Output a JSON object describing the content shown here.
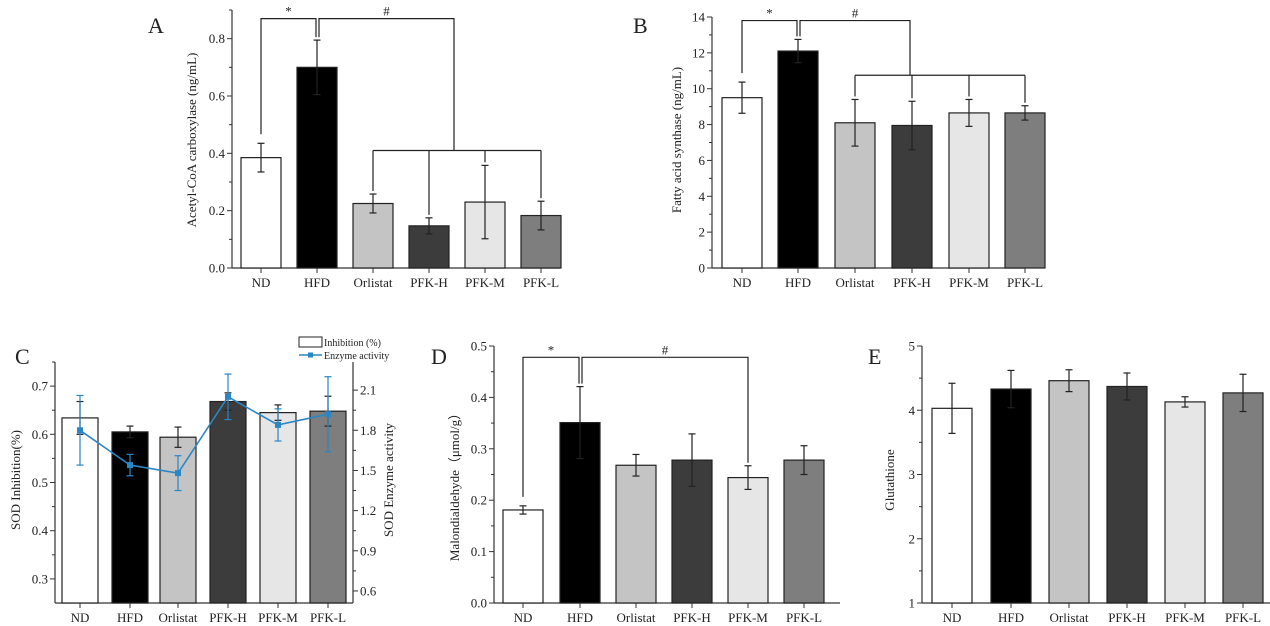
{
  "chart_data": [
    {
      "id": "A",
      "type": "bar",
      "panel_label": "A",
      "title": "",
      "xlabel": "",
      "ylabel": "Acetyl-CoA carboxylase (ng/mL)",
      "categories": [
        "ND",
        "HFD",
        "Orlistat",
        "PFK-H",
        "PFK-M",
        "PFK-L"
      ],
      "values": [
        0.385,
        0.7,
        0.225,
        0.147,
        0.23,
        0.183
      ],
      "errors": [
        0.05,
        0.095,
        0.033,
        0.028,
        0.128,
        0.05
      ],
      "ylim": [
        0,
        0.9
      ],
      "yticks": [
        0.0,
        0.2,
        0.4,
        0.6,
        0.8
      ],
      "ytick_labels": [
        "0.0",
        "0.2",
        "0.4",
        "0.6",
        "0.8"
      ],
      "bar_colors": [
        "#ffffff",
        "#000000",
        "#c4c4c4",
        "#3c3c3c",
        "#e6e6e6",
        "#7e7e7e"
      ],
      "significance": [
        {
          "symbol": "*",
          "from": "ND",
          "to": [
            "HFD"
          ],
          "level": 0.87
        },
        {
          "symbol": "#",
          "from": "HFD",
          "to": [
            "Orlistat",
            "PFK-H",
            "PFK-M",
            "PFK-L"
          ],
          "level": 0.87,
          "sub_level": 0.41
        }
      ]
    },
    {
      "id": "B",
      "type": "bar",
      "panel_label": "B",
      "title": "",
      "xlabel": "",
      "ylabel": "Fatty acid synthase (ng/mL)",
      "categories": [
        "ND",
        "HFD",
        "Orlistat",
        "PFK-H",
        "PFK-M",
        "PFK-L"
      ],
      "values": [
        9.5,
        12.1,
        8.1,
        7.95,
        8.65,
        8.65
      ],
      "errors": [
        0.87,
        0.65,
        1.3,
        1.35,
        0.75,
        0.4
      ],
      "ylim": [
        0,
        14
      ],
      "yticks": [
        0,
        2,
        4,
        6,
        8,
        10,
        12,
        14
      ],
      "ytick_labels": [
        "0",
        "2",
        "4",
        "6",
        "8",
        "10",
        "12",
        "14"
      ],
      "bar_colors": [
        "#ffffff",
        "#000000",
        "#c4c4c4",
        "#3c3c3c",
        "#e6e6e6",
        "#7e7e7e"
      ],
      "significance": [
        {
          "symbol": "*",
          "from": "ND",
          "to": [
            "HFD"
          ],
          "level": 13.8
        },
        {
          "symbol": "#",
          "from": "HFD",
          "to": [
            "Orlistat",
            "PFK-H",
            "PFK-M",
            "PFK-L"
          ],
          "level": 13.8,
          "sub_level": 10.75
        }
      ]
    },
    {
      "id": "C",
      "type": "bar",
      "panel_label": "C",
      "title": "",
      "xlabel": "",
      "ylabel": "SOD Inhibition(%)",
      "ylabel_right": "SOD Enzyme activity",
      "categories": [
        "ND",
        "HFD",
        "Orlistat",
        "PFK-H",
        "PFK-M",
        "PFK-L"
      ],
      "values": [
        0.634,
        0.605,
        0.594,
        0.668,
        0.645,
        0.648
      ],
      "errors": [
        0.034,
        0.012,
        0.021,
        0.018,
        0.016,
        0.031
      ],
      "ylim": [
        0.25,
        0.75
      ],
      "yticks": [
        0.3,
        0.4,
        0.5,
        0.6,
        0.7
      ],
      "ytick_labels": [
        "0.3",
        "0.4",
        "0.5",
        "0.6",
        "0.7"
      ],
      "y2lim": [
        0.51,
        2.31
      ],
      "y2ticks": [
        0.6,
        0.9,
        1.2,
        1.5,
        1.8,
        2.1
      ],
      "y2tick_labels": [
        "0.6",
        "0.9",
        "1.2",
        "1.5",
        "1.8",
        "2.1"
      ],
      "bar_colors": [
        "#ffffff",
        "#000000",
        "#c4c4c4",
        "#3c3c3c",
        "#e6e6e6",
        "#7e7e7e"
      ],
      "line_series": {
        "name": "Enzyme activity",
        "color": "#2a86c4",
        "values": [
          1.8,
          1.54,
          1.48,
          2.05,
          1.84,
          1.92
        ],
        "errors": [
          0.26,
          0.08,
          0.13,
          0.17,
          0.12,
          0.28
        ]
      },
      "legend": {
        "position": "top-right",
        "entries": [
          {
            "label": "Inhibition (%)",
            "kind": "bar"
          },
          {
            "label": "Enzyme activity",
            "kind": "line"
          }
        ]
      }
    },
    {
      "id": "D",
      "type": "bar",
      "panel_label": "D",
      "title": "",
      "xlabel": "",
      "ylabel": "Malondialdehyde（μmol/g）",
      "categories": [
        "ND",
        "HFD",
        "Orlistat",
        "PFK-H",
        "PFK-M",
        "PFK-L"
      ],
      "values": [
        0.181,
        0.351,
        0.268,
        0.278,
        0.244,
        0.278
      ],
      "errors": [
        0.008,
        0.07,
        0.021,
        0.051,
        0.023,
        0.028
      ],
      "ylim": [
        0,
        0.5
      ],
      "yticks": [
        0.0,
        0.1,
        0.2,
        0.3,
        0.4,
        0.5
      ],
      "ytick_labels": [
        "0.0",
        "0.1",
        "0.2",
        "0.3",
        "0.4",
        "0.5"
      ],
      "bar_colors": [
        "#ffffff",
        "#000000",
        "#c4c4c4",
        "#3c3c3c",
        "#e6e6e6",
        "#7e7e7e"
      ],
      "significance": [
        {
          "symbol": "*",
          "from": "ND",
          "to": [
            "HFD"
          ],
          "level": 0.478
        },
        {
          "symbol": "#",
          "from": "HFD",
          "to": [
            "PFK-M"
          ],
          "level": 0.478
        }
      ]
    },
    {
      "id": "E",
      "type": "bar",
      "panel_label": "E",
      "title": "",
      "xlabel": "",
      "ylabel": "Glutathione",
      "categories": [
        "ND",
        "HFD",
        "Orlistat",
        "PFK-H",
        "PFK-M",
        "PFK-L"
      ],
      "values": [
        4.03,
        4.33,
        4.46,
        4.37,
        4.13,
        4.27
      ],
      "errors": [
        0.39,
        0.29,
        0.17,
        0.21,
        0.08,
        0.29
      ],
      "ylim": [
        1,
        5
      ],
      "yticks": [
        1,
        2,
        3,
        4,
        5
      ],
      "ytick_labels": [
        "1",
        "2",
        "3",
        "4",
        "5"
      ],
      "bar_colors": [
        "#ffffff",
        "#000000",
        "#c4c4c4",
        "#3c3c3c",
        "#e6e6e6",
        "#7e7e7e"
      ],
      "significance": []
    }
  ]
}
